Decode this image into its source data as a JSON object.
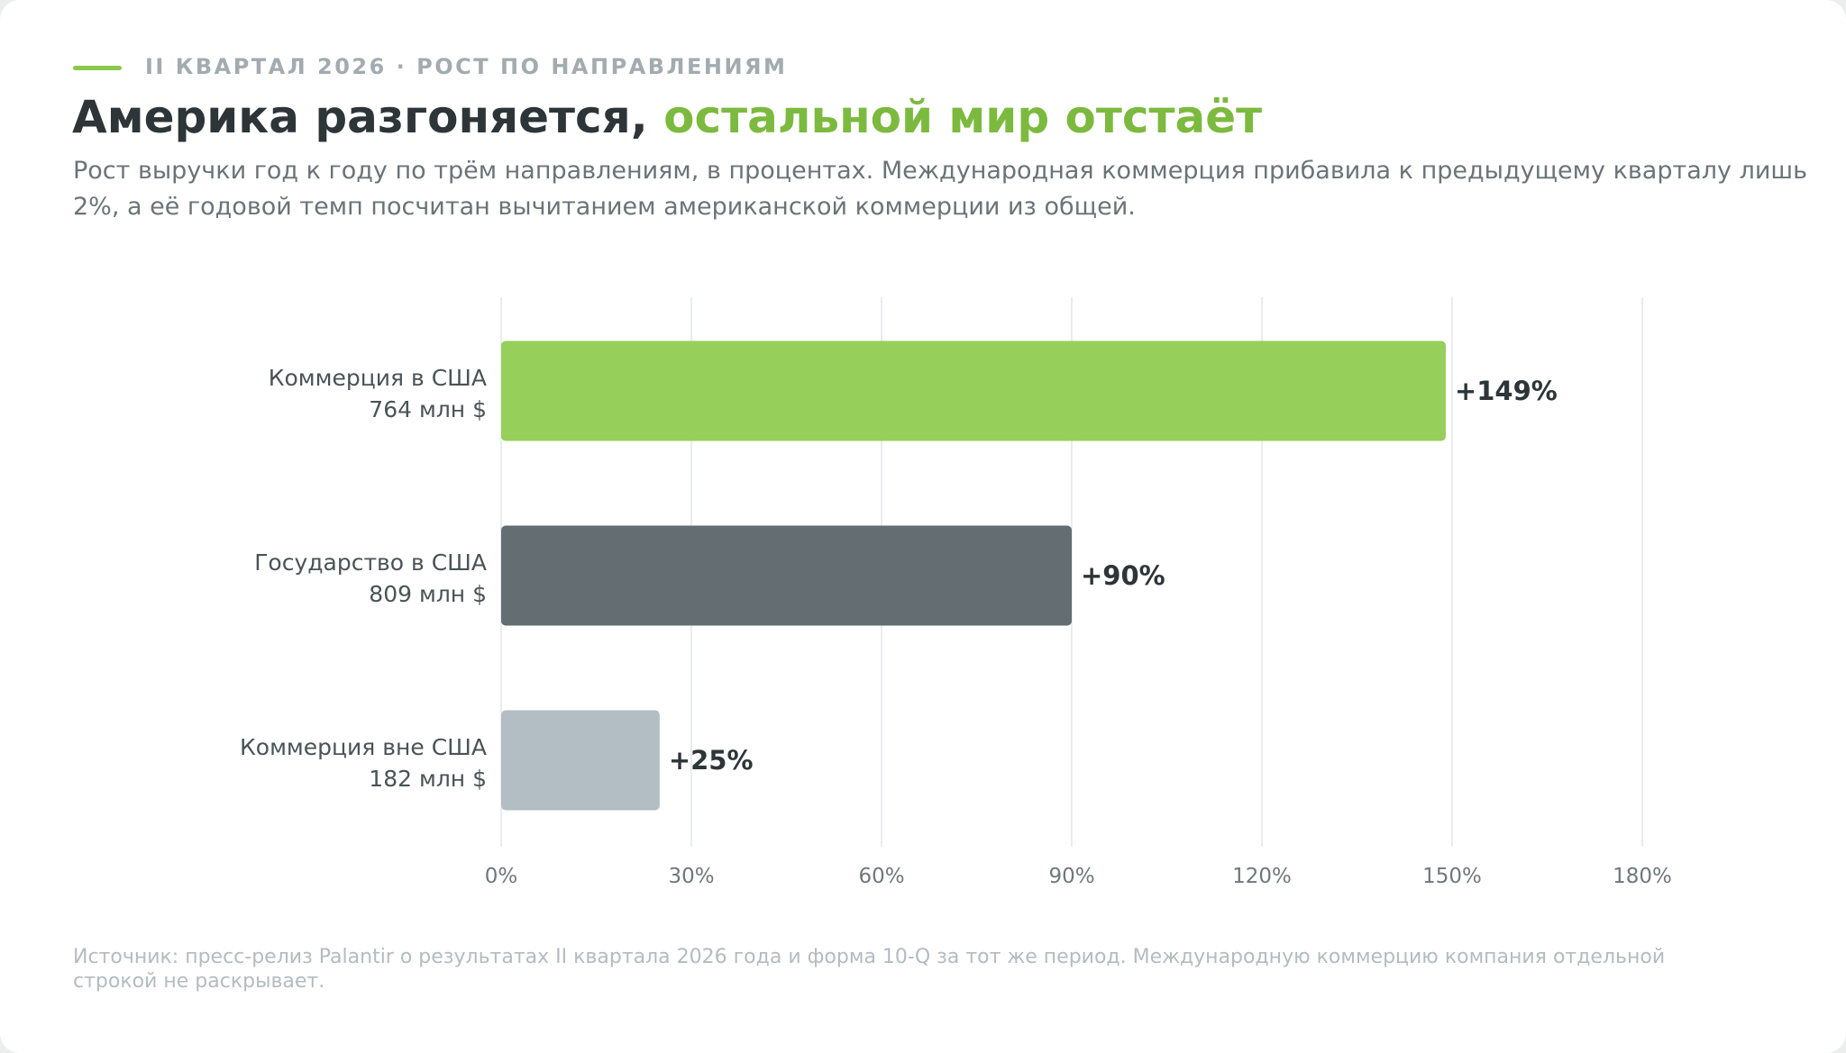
{
  "header": {
    "kicker": "II КВАРТАЛ 2026 · РОСТ ПО НАПРАВЛЕНИЯМ",
    "title_main": "Америка разгоняется, ",
    "title_accent": "остальной мир отстаёт",
    "subtitle": "Рост выручки год к году по трём направлениям, в процентах. Международная коммерция прибавила к предыдущему кварталу лишь 2%, а её годовой темп посчитан вычитанием американской коммерции из общей."
  },
  "chart_data": {
    "type": "bar",
    "orientation": "horizontal",
    "categories": [
      "Коммерция в США",
      "Государство в США",
      "Коммерция вне США"
    ],
    "sublabels": [
      "764 млн $",
      "809 млн $",
      "182 млн $"
    ],
    "values": [
      149,
      90,
      25
    ],
    "value_labels": [
      "+149%",
      "+90%",
      "+25%"
    ],
    "colors": [
      "#96cf5a",
      "#636d72",
      "#b3bec4"
    ],
    "xlim": [
      0,
      180
    ],
    "xticks": [
      0,
      30,
      60,
      90,
      120,
      150,
      180
    ],
    "xtick_labels": [
      "0%",
      "30%",
      "60%",
      "90%",
      "120%",
      "150%",
      "180%"
    ],
    "grid": true,
    "legend": "none"
  },
  "footer": {
    "source": "Источник: пресс-релиз Palantir о результатах II квартала 2026 года и форма 10-Q за тот же период. Международную коммерцию компания отдельной строкой не раскрывает."
  },
  "colors": {
    "accent": "#7cba3f",
    "kicker_line": "#8cc84b",
    "title": "#2d3538",
    "subtitle": "#6a7478",
    "muted": "#b3bcc1",
    "grid": "#e3e6e8"
  }
}
